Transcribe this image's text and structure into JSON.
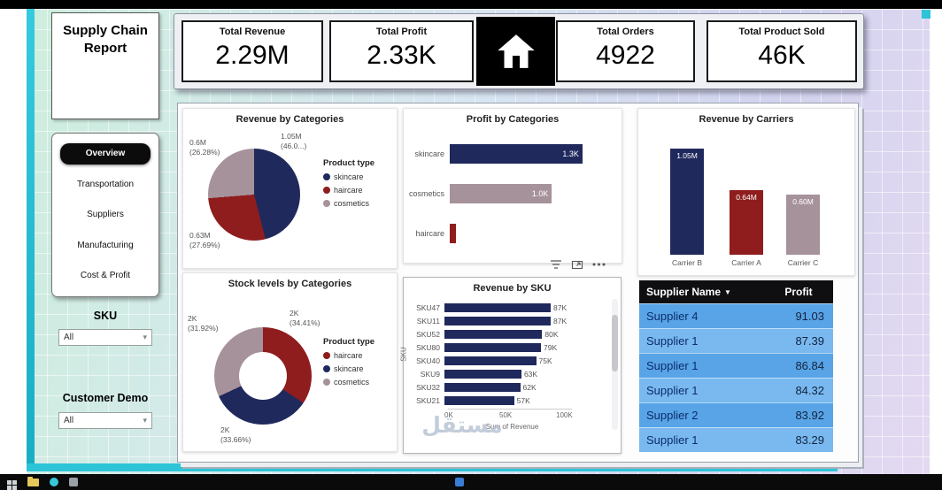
{
  "colors": {
    "navy": "#20295c",
    "maroon": "#8f1d1d",
    "mauve": "#a6929b",
    "teal": "#2cc4d6",
    "table_row_a": "#58a4e7",
    "table_row_b": "#79b9f0"
  },
  "sidebar": {
    "title": "Supply Chain Report",
    "nav": [
      {
        "label": "Overview",
        "active": true
      },
      {
        "label": "Transportation",
        "active": false
      },
      {
        "label": "Suppliers",
        "active": false
      },
      {
        "label": "Manufacturing",
        "active": false
      },
      {
        "label": "Cost & Profit",
        "active": false
      }
    ],
    "filters": [
      {
        "label": "SKU",
        "value": "All"
      },
      {
        "label": "Customer Demo",
        "value": "All"
      }
    ]
  },
  "kpis": [
    {
      "label": "Total Revenue",
      "value": "2.29M"
    },
    {
      "label": "Total Profit",
      "value": "2.33K"
    },
    {
      "label": "Total Orders",
      "value": "4922"
    },
    {
      "label": "Total Product Sold",
      "value": "46K"
    }
  ],
  "chart_data": [
    {
      "type": "pie",
      "title": "Revenue by Categories",
      "legend_title": "Product type",
      "slices": [
        {
          "label": "skincare",
          "pct": 46.03,
          "value_label": "1.05M",
          "color": "#20295c"
        },
        {
          "label": "haircare",
          "pct": 27.69,
          "value_label": "0.63M",
          "color": "#8f1d1d"
        },
        {
          "label": "cosmetics",
          "pct": 26.28,
          "value_label": "0.6M",
          "color": "#a6929b"
        }
      ],
      "callouts": [
        "0.6M\n(26.28%)",
        "1.05M\n(46.0...)",
        "0.63M\n(27.69%)"
      ]
    },
    {
      "type": "bar",
      "title": "Profit by Categories",
      "categories": [
        "skincare",
        "cosmetics",
        "haircare"
      ],
      "values": [
        1300,
        1000,
        60
      ],
      "value_labels": [
        "1.3K",
        "1.0K",
        ""
      ],
      "colors": [
        "#20295c",
        "#a6929b",
        "#8f1d1d"
      ],
      "xmax": 1500
    },
    {
      "type": "column",
      "title": "Revenue by Carriers",
      "categories": [
        "Carrier B",
        "Carrier A",
        "Carrier C"
      ],
      "values": [
        1.05,
        0.64,
        0.6
      ],
      "value_labels": [
        "1.05M",
        "0.64M",
        "0.60M"
      ],
      "colors": [
        "#20295c",
        "#8f1d1d",
        "#a6929b"
      ],
      "ymax": 1.15
    },
    {
      "type": "donut",
      "title": "Stock levels by Categories",
      "legend_title": "Product type",
      "slices": [
        {
          "label": "haircare",
          "pct": 34.41,
          "value_label": "2K",
          "color": "#8f1d1d"
        },
        {
          "label": "skincare",
          "pct": 33.66,
          "value_label": "2K",
          "color": "#20295c"
        },
        {
          "label": "cosmetics",
          "pct": 31.92,
          "value_label": "2K",
          "color": "#a6929b"
        }
      ],
      "callouts": [
        "2K\n(31.92%)",
        "2K\n(34.41%)",
        "2K\n(33.66%)"
      ]
    },
    {
      "type": "bar",
      "title": "Revenue by SKU",
      "categories": [
        "SKU47",
        "SKU11",
        "SKU52",
        "SKU80",
        "SKU40",
        "SKU9",
        "SKU32",
        "SKU21"
      ],
      "values": [
        87,
        87,
        80,
        79,
        75,
        63,
        62,
        57
      ],
      "value_labels": [
        "87K",
        "87K",
        "80K",
        "79K",
        "75K",
        "63K",
        "62K",
        "57K"
      ],
      "xticks": [
        "0K",
        "50K",
        "100K"
      ],
      "xmax": 100,
      "xlabel": "Sum of Revenue",
      "ylabel": "SKU",
      "color": "#20295c"
    },
    {
      "type": "table",
      "columns": [
        "Supplier Name",
        "Profit"
      ],
      "rows": [
        [
          "Supplier 4",
          "91.03"
        ],
        [
          "Supplier 1",
          "87.39"
        ],
        [
          "Supplier 1",
          "86.84"
        ],
        [
          "Supplier 1",
          "84.32"
        ],
        [
          "Supplier 2",
          "83.92"
        ],
        [
          "Supplier 1",
          "83.29"
        ]
      ]
    }
  ],
  "watermark": "مستقل"
}
